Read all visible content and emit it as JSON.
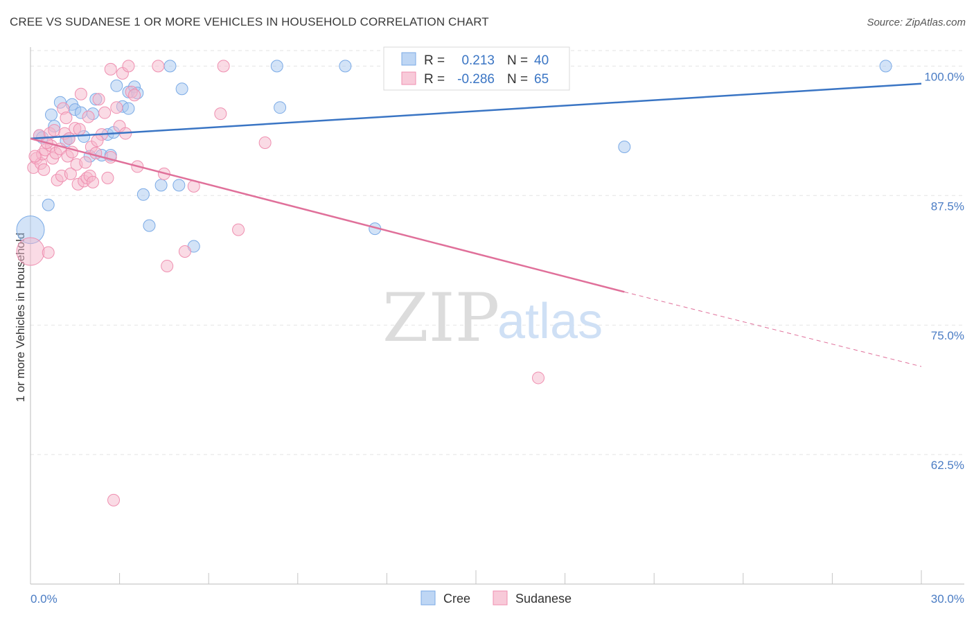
{
  "title": "CREE VS SUDANESE 1 OR MORE VEHICLES IN HOUSEHOLD CORRELATION CHART",
  "source": "Source: ZipAtlas.com",
  "watermark": {
    "zip": "ZIP",
    "atlas": "atlas"
  },
  "colors": {
    "cree": "#a8c8f0",
    "cree_stroke": "#7aaae6",
    "cree_line": "#3a75c4",
    "sudanese": "#f5b8cc",
    "sudanese_stroke": "#ef8fb0",
    "sudanese_line": "#e0709a",
    "tick_text": "#4a7cc4"
  },
  "legend": {
    "entries": [
      {
        "r_label": "R =",
        "r_value": "0.213",
        "n_label": "N =",
        "n_value": "40"
      },
      {
        "r_label": "R =",
        "r_value": "-0.286",
        "n_label": "N =",
        "n_value": "65"
      }
    ]
  },
  "bottom_legend": [
    "Cree",
    "Sudanese"
  ],
  "chart_data": {
    "type": "scatter",
    "xlabel": "",
    "ylabel": "1 or more Vehicles in Household",
    "xlim": [
      0,
      30
    ],
    "ylim": [
      50,
      102.5
    ],
    "x_tick_labels": [
      "0.0%",
      "30.0%"
    ],
    "y_ticks": [
      62.5,
      75.0,
      87.5,
      100.0
    ],
    "y_tick_labels": [
      "62.5%",
      "75.0%",
      "87.5%",
      "100.0%"
    ],
    "grid": true,
    "legend_position": "top-center",
    "series": [
      {
        "name": "Cree",
        "trend": {
          "x": [
            0,
            30
          ],
          "y": [
            93.0,
            98.3
          ]
        },
        "points": [
          {
            "x": 0.0,
            "y": 84.2,
            "big": true
          },
          {
            "x": 0.3,
            "y": 93.3
          },
          {
            "x": 0.4,
            "y": 93.1
          },
          {
            "x": 0.6,
            "y": 86.6
          },
          {
            "x": 0.7,
            "y": 95.3
          },
          {
            "x": 0.8,
            "y": 94.2
          },
          {
            "x": 1.0,
            "y": 96.5
          },
          {
            "x": 1.2,
            "y": 92.8
          },
          {
            "x": 1.3,
            "y": 93.0
          },
          {
            "x": 1.4,
            "y": 96.3
          },
          {
            "x": 1.5,
            "y": 95.8
          },
          {
            "x": 1.7,
            "y": 95.5
          },
          {
            "x": 1.8,
            "y": 93.2
          },
          {
            "x": 2.0,
            "y": 91.3
          },
          {
            "x": 2.1,
            "y": 95.4
          },
          {
            "x": 2.2,
            "y": 96.8
          },
          {
            "x": 2.4,
            "y": 91.4
          },
          {
            "x": 2.6,
            "y": 93.4
          },
          {
            "x": 2.7,
            "y": 91.4
          },
          {
            "x": 2.8,
            "y": 93.6
          },
          {
            "x": 2.9,
            "y": 98.1
          },
          {
            "x": 3.1,
            "y": 96.1
          },
          {
            "x": 3.3,
            "y": 97.5
          },
          {
            "x": 3.3,
            "y": 95.9
          },
          {
            "x": 3.5,
            "y": 98.0
          },
          {
            "x": 3.6,
            "y": 97.4
          },
          {
            "x": 3.8,
            "y": 87.6
          },
          {
            "x": 4.0,
            "y": 84.6
          },
          {
            "x": 4.4,
            "y": 88.5
          },
          {
            "x": 4.7,
            "y": 100.0
          },
          {
            "x": 5.0,
            "y": 88.5
          },
          {
            "x": 5.1,
            "y": 97.8
          },
          {
            "x": 5.5,
            "y": 82.6
          },
          {
            "x": 8.3,
            "y": 100.0
          },
          {
            "x": 8.4,
            "y": 96.0
          },
          {
            "x": 10.6,
            "y": 100.0
          },
          {
            "x": 11.6,
            "y": 84.3
          },
          {
            "x": 14.2,
            "y": 100.0
          },
          {
            "x": 20.0,
            "y": 92.2
          },
          {
            "x": 28.8,
            "y": 100.0
          }
        ]
      },
      {
        "name": "Sudanese",
        "trend": {
          "x": [
            0,
            20
          ],
          "y": [
            93.0,
            78.2
          ]
        },
        "trend_dashed": {
          "x": [
            20,
            30
          ],
          "y": [
            78.2,
            71.0
          ]
        },
        "points": [
          {
            "x": 0.0,
            "y": 82.1,
            "big": true
          },
          {
            "x": 0.1,
            "y": 90.2
          },
          {
            "x": 0.2,
            "y": 91.1
          },
          {
            "x": 0.3,
            "y": 93.3
          },
          {
            "x": 0.35,
            "y": 90.6
          },
          {
            "x": 0.4,
            "y": 91.5
          },
          {
            "x": 0.45,
            "y": 90.0
          },
          {
            "x": 0.5,
            "y": 91.9
          },
          {
            "x": 0.6,
            "y": 82.0
          },
          {
            "x": 0.65,
            "y": 93.5
          },
          {
            "x": 0.7,
            "y": 92.3
          },
          {
            "x": 0.75,
            "y": 91.1
          },
          {
            "x": 0.8,
            "y": 93.8
          },
          {
            "x": 0.85,
            "y": 91.6
          },
          {
            "x": 0.9,
            "y": 89.0
          },
          {
            "x": 1.0,
            "y": 92.0
          },
          {
            "x": 1.05,
            "y": 89.4
          },
          {
            "x": 1.1,
            "y": 95.9
          },
          {
            "x": 1.15,
            "y": 93.5
          },
          {
            "x": 1.2,
            "y": 95.0
          },
          {
            "x": 1.25,
            "y": 91.3
          },
          {
            "x": 1.3,
            "y": 93.0
          },
          {
            "x": 1.35,
            "y": 89.6
          },
          {
            "x": 1.4,
            "y": 91.7
          },
          {
            "x": 1.5,
            "y": 94.0
          },
          {
            "x": 1.55,
            "y": 90.5
          },
          {
            "x": 1.6,
            "y": 88.6
          },
          {
            "x": 1.7,
            "y": 97.3
          },
          {
            "x": 1.8,
            "y": 88.9
          },
          {
            "x": 1.85,
            "y": 90.7
          },
          {
            "x": 1.9,
            "y": 89.2
          },
          {
            "x": 1.95,
            "y": 95.1
          },
          {
            "x": 2.0,
            "y": 89.4
          },
          {
            "x": 2.05,
            "y": 92.2
          },
          {
            "x": 2.1,
            "y": 88.8
          },
          {
            "x": 2.2,
            "y": 91.6
          },
          {
            "x": 2.3,
            "y": 96.8
          },
          {
            "x": 2.4,
            "y": 93.4
          },
          {
            "x": 2.5,
            "y": 95.5
          },
          {
            "x": 2.6,
            "y": 89.2
          },
          {
            "x": 2.7,
            "y": 91.2
          },
          {
            "x": 2.8,
            "y": 58.1
          },
          {
            "x": 2.9,
            "y": 96.0
          },
          {
            "x": 3.0,
            "y": 94.2
          },
          {
            "x": 3.1,
            "y": 99.3
          },
          {
            "x": 3.2,
            "y": 93.5
          },
          {
            "x": 3.3,
            "y": 100.0
          },
          {
            "x": 2.7,
            "y": 99.7
          },
          {
            "x": 3.4,
            "y": 97.5
          },
          {
            "x": 3.6,
            "y": 90.3
          },
          {
            "x": 4.3,
            "y": 100.0
          },
          {
            "x": 4.5,
            "y": 89.6
          },
          {
            "x": 4.6,
            "y": 80.7
          },
          {
            "x": 5.2,
            "y": 82.1
          },
          {
            "x": 5.5,
            "y": 88.4
          },
          {
            "x": 6.4,
            "y": 95.4
          },
          {
            "x": 6.5,
            "y": 100.0
          },
          {
            "x": 7.0,
            "y": 84.2
          },
          {
            "x": 7.9,
            "y": 92.6
          },
          {
            "x": 17.1,
            "y": 69.9
          },
          {
            "x": 0.15,
            "y": 91.3
          },
          {
            "x": 0.55,
            "y": 92.6
          },
          {
            "x": 1.65,
            "y": 93.9
          },
          {
            "x": 2.25,
            "y": 92.8
          },
          {
            "x": 3.5,
            "y": 97.2
          }
        ]
      }
    ]
  }
}
